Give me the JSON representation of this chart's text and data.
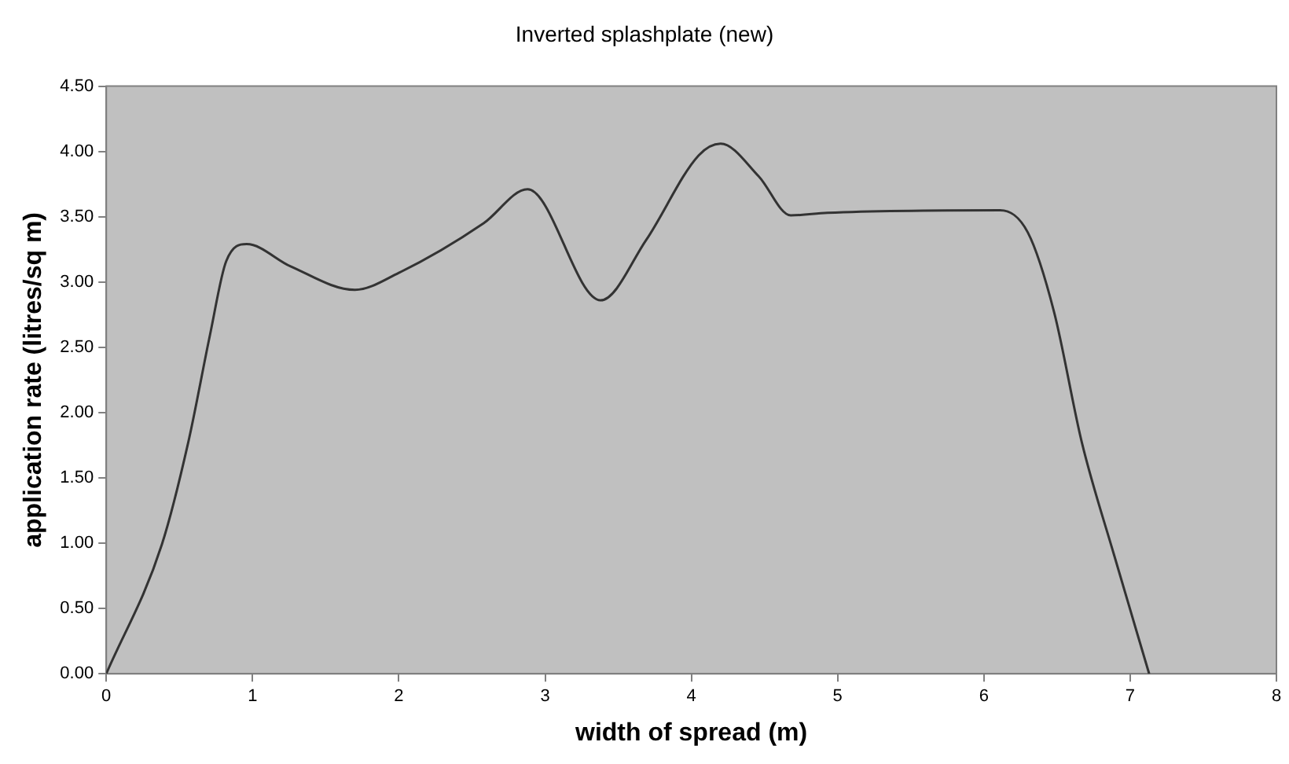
{
  "chart_data": {
    "type": "line",
    "title": "Inverted splashplate (new)",
    "xlabel": "width of spread (m)",
    "ylabel": "application rate (litres/sq m)",
    "xlim": [
      0,
      8
    ],
    "xticks": [
      0,
      1,
      2,
      3,
      4,
      5,
      6,
      7,
      8
    ],
    "ylim": [
      0,
      4.5
    ],
    "yticks": [
      {
        "value": 0,
        "label": "0.00"
      },
      {
        "value": 0.5,
        "label": "0.50"
      },
      {
        "value": 1,
        "label": "1.00"
      },
      {
        "value": 1.5,
        "label": "1.50"
      },
      {
        "value": 2,
        "label": "2.00"
      },
      {
        "value": 2.5,
        "label": "2.50"
      },
      {
        "value": 3,
        "label": "3.00"
      },
      {
        "value": 3.5,
        "label": "3.50"
      },
      {
        "value": 4,
        "label": "4.00"
      },
      {
        "value": 4.5,
        "label": "4.50"
      }
    ],
    "grid": false,
    "legend": false,
    "marker": "none",
    "line_style": "solid",
    "series": [
      {
        "color": "#333333",
        "x": [
          0,
          0.38,
          0.56,
          0.71,
          0.82,
          0.96,
          1.26,
          1.7,
          2.0,
          2.58,
          2.88,
          3.38,
          3.69,
          4.05,
          4.2,
          4.46,
          4.68,
          4.93,
          6.11,
          6.3,
          6.48,
          6.67,
          6.89,
          7.13
        ],
        "values": [
          0,
          0.99,
          1.77,
          2.6,
          3.16,
          3.29,
          3.12,
          2.94,
          3.07,
          3.45,
          3.71,
          2.86,
          3.32,
          3.97,
          4.06,
          3.81,
          3.51,
          3.53,
          3.55,
          3.38,
          2.77,
          1.77,
          0.91,
          0
        ]
      }
    ]
  }
}
